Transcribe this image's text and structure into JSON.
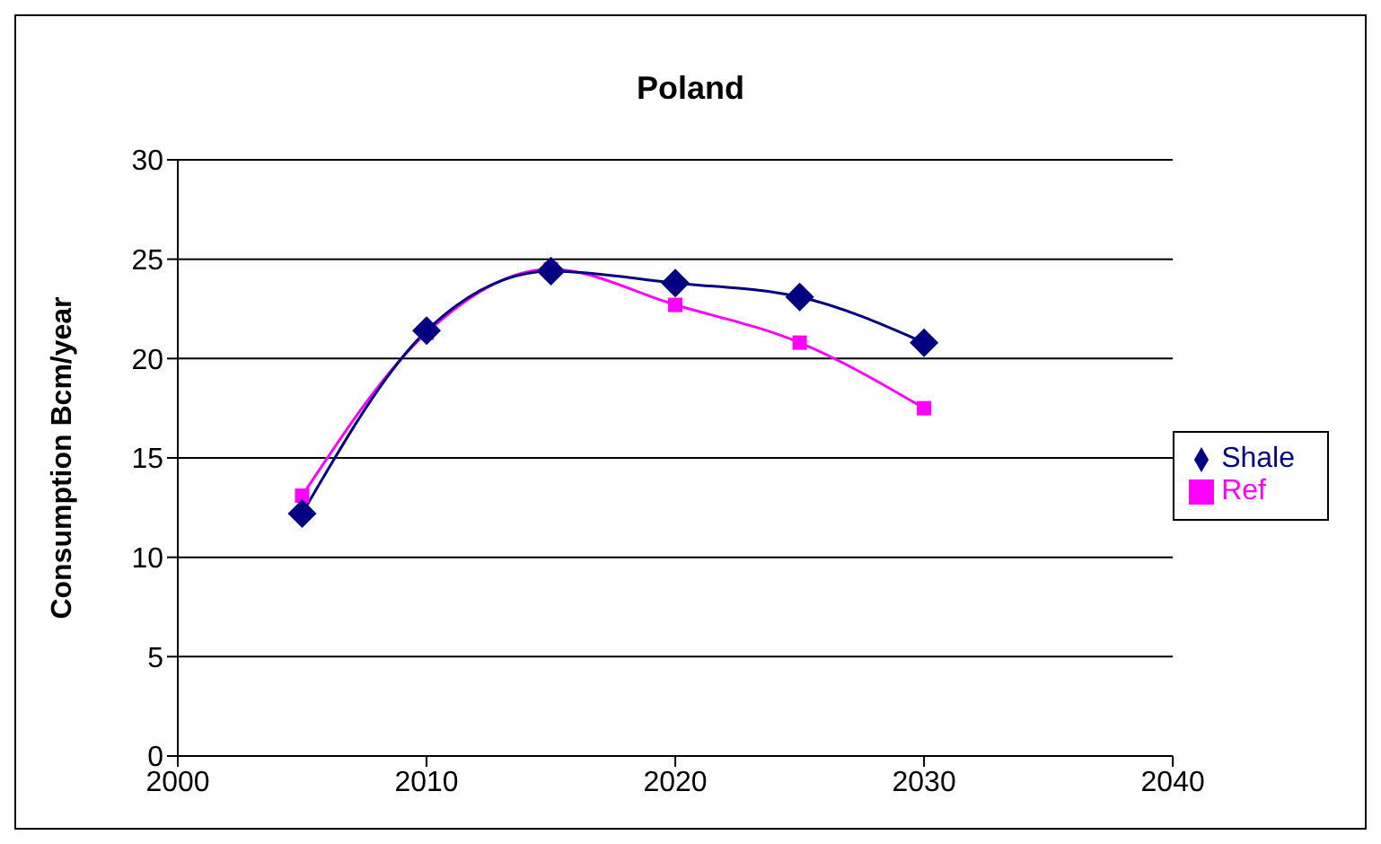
{
  "chart_data": {
    "type": "line",
    "title": "Poland",
    "ylabel": "Consumption Bcm/year",
    "x": [
      2005,
      2010,
      2015,
      2020,
      2025,
      2030
    ],
    "series": [
      {
        "name": "Shale",
        "color": "#000080",
        "marker": "diamond",
        "values": [
          12.2,
          21.4,
          24.4,
          23.8,
          23.1,
          20.8
        ]
      },
      {
        "name": "Ref",
        "color": "#ff00ff",
        "marker": "square",
        "values": [
          13.1,
          21.3,
          24.5,
          22.7,
          20.8,
          17.5
        ]
      }
    ],
    "xlim": [
      2000,
      2040
    ],
    "xticks": [
      2000,
      2010,
      2020,
      2030,
      2040
    ],
    "ylim": [
      0,
      30
    ],
    "yticks": [
      0,
      5,
      10,
      15,
      20,
      25,
      30
    ],
    "grid": "y",
    "legend": "right"
  }
}
